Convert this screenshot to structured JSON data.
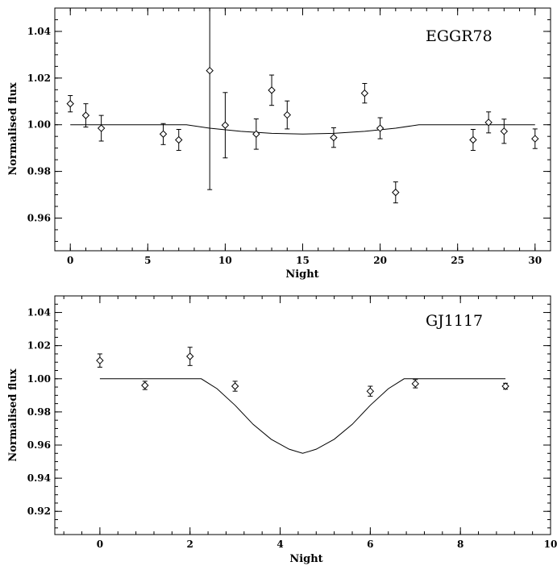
{
  "chart_data": [
    {
      "type": "scatter",
      "title": "EGGR78",
      "xlabel": "Night",
      "ylabel": "Normalised flux",
      "xlim": [
        -1,
        31
      ],
      "ylim": [
        0.946,
        1.05
      ],
      "xticks": [
        0,
        5,
        10,
        15,
        20,
        25,
        30
      ],
      "yticks": [
        0.96,
        0.98,
        1.0,
        1.02,
        1.04
      ],
      "ytick_labels": [
        "0.96",
        "0.98",
        "1.00",
        "1.02",
        "1.04"
      ],
      "grid": false,
      "points": [
        {
          "x": 0,
          "y": 1.009,
          "err": 0.0035
        },
        {
          "x": 1,
          "y": 1.004,
          "err": 0.005
        },
        {
          "x": 2,
          "y": 0.9985,
          "err": 0.0055
        },
        {
          "x": 6,
          "y": 0.996,
          "err": 0.0045
        },
        {
          "x": 7,
          "y": 0.9935,
          "err": 0.0045
        },
        {
          "x": 9,
          "y": 1.0232,
          "err": 0.051
        },
        {
          "x": 10,
          "y": 0.9998,
          "err": 0.014
        },
        {
          "x": 12,
          "y": 0.996,
          "err": 0.0065
        },
        {
          "x": 13,
          "y": 1.0148,
          "err": 0.0065
        },
        {
          "x": 14,
          "y": 1.0042,
          "err": 0.006
        },
        {
          "x": 17,
          "y": 0.9945,
          "err": 0.0042
        },
        {
          "x": 19,
          "y": 1.0135,
          "err": 0.0042
        },
        {
          "x": 20,
          "y": 0.9985,
          "err": 0.0045
        },
        {
          "x": 21,
          "y": 0.971,
          "err": 0.0045
        },
        {
          "x": 26,
          "y": 0.9935,
          "err": 0.0045
        },
        {
          "x": 27,
          "y": 1.001,
          "err": 0.0045
        },
        {
          "x": 28,
          "y": 0.9972,
          "err": 0.0052
        },
        {
          "x": 30,
          "y": 0.994,
          "err": 0.0042
        }
      ],
      "model": [
        [
          0,
          1.0
        ],
        [
          7.5,
          1.0
        ],
        [
          9,
          0.9985
        ],
        [
          11,
          0.9972
        ],
        [
          13,
          0.9963
        ],
        [
          15,
          0.996
        ],
        [
          17,
          0.9963
        ],
        [
          19,
          0.9972
        ],
        [
          21,
          0.9985
        ],
        [
          22.5,
          1.0
        ],
        [
          30,
          1.0
        ]
      ]
    },
    {
      "type": "scatter",
      "title": "GJ1117",
      "xlabel": "Night",
      "ylabel": "Normalised flux",
      "xlim": [
        -1,
        10
      ],
      "ylim": [
        0.906,
        1.05
      ],
      "xticks": [
        0,
        2,
        4,
        6,
        8,
        10
      ],
      "yticks": [
        0.92,
        0.94,
        0.96,
        0.98,
        1.0,
        1.02,
        1.04
      ],
      "ytick_labels": [
        "0.92",
        "0.94",
        "0.96",
        "0.98",
        "1.00",
        "1.02",
        "1.04"
      ],
      "grid": false,
      "points": [
        {
          "x": 0,
          "y": 1.011,
          "err": 0.004
        },
        {
          "x": 1,
          "y": 0.996,
          "err": 0.0025
        },
        {
          "x": 2,
          "y": 1.0135,
          "err": 0.0055
        },
        {
          "x": 3,
          "y": 0.9955,
          "err": 0.003
        },
        {
          "x": 6,
          "y": 0.9925,
          "err": 0.003
        },
        {
          "x": 7,
          "y": 0.997,
          "err": 0.0025
        },
        {
          "x": 9,
          "y": 0.9955,
          "err": 0.0018
        }
      ],
      "model": [
        [
          0,
          1.0
        ],
        [
          2.25,
          1.0
        ],
        [
          2.6,
          0.994
        ],
        [
          3.0,
          0.984
        ],
        [
          3.4,
          0.9725
        ],
        [
          3.8,
          0.9635
        ],
        [
          4.2,
          0.9575
        ],
        [
          4.5,
          0.955
        ],
        [
          4.8,
          0.9575
        ],
        [
          5.2,
          0.9635
        ],
        [
          5.6,
          0.9725
        ],
        [
          6.0,
          0.984
        ],
        [
          6.4,
          0.994
        ],
        [
          6.75,
          1.0
        ],
        [
          9,
          1.0
        ]
      ]
    }
  ]
}
